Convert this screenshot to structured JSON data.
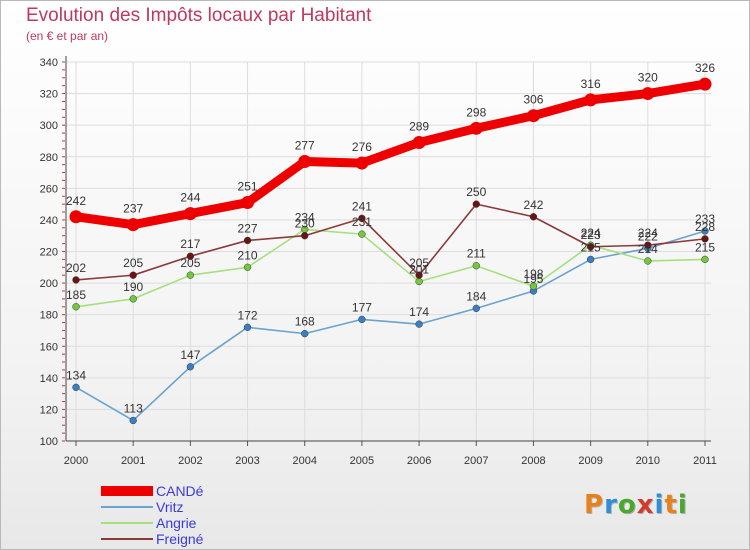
{
  "header": {
    "title": "Evolution des Impôts locaux par Habitant",
    "subtitle": "(en € et par an)"
  },
  "logo": {
    "text": "Proxiti",
    "letter_colors": [
      "#e8811a",
      "#2f8ed8",
      "#4aa82e",
      "#d33a2b",
      "#2f8ed8",
      "#e8811a",
      "#4aa82e"
    ]
  },
  "chart_data": {
    "type": "line",
    "title": "Evolution des Impôts locaux par Habitant",
    "subtitle": "(en € et par an)",
    "xlabel": "",
    "ylabel": "",
    "x": [
      "2000",
      "2001",
      "2002",
      "2003",
      "2004",
      "2005",
      "2006",
      "2007",
      "2008",
      "2009",
      "2010",
      "2011"
    ],
    "ylim": [
      100,
      340
    ],
    "yticks": [
      100,
      120,
      140,
      160,
      180,
      200,
      220,
      240,
      260,
      280,
      300,
      320,
      340
    ],
    "grid": true,
    "legend_position": "bottom-left",
    "series": [
      {
        "name": "CANDé",
        "color": "#ee0000",
        "marker_color": "#ee0000",
        "bold": true,
        "values": [
          242,
          237,
          244,
          251,
          277,
          276,
          289,
          298,
          306,
          316,
          320,
          326
        ]
      },
      {
        "name": "Vritz",
        "color": "#6aa2d0",
        "marker_color": "#3a7fc6",
        "bold": false,
        "values": [
          134,
          113,
          147,
          172,
          168,
          177,
          174,
          184,
          195,
          215,
          222,
          233
        ]
      },
      {
        "name": "Angrie",
        "color": "#a6e07e",
        "marker_color": "#73c93d",
        "bold": false,
        "values": [
          185,
          190,
          205,
          210,
          234,
          231,
          201,
          211,
          198,
          224,
          214,
          215
        ]
      },
      {
        "name": "Freigné",
        "color": "#8b3a3a",
        "marker_color": "#6b1414",
        "bold": false,
        "values": [
          202,
          205,
          217,
          227,
          230,
          241,
          205,
          250,
          242,
          223,
          224,
          228
        ]
      }
    ]
  }
}
